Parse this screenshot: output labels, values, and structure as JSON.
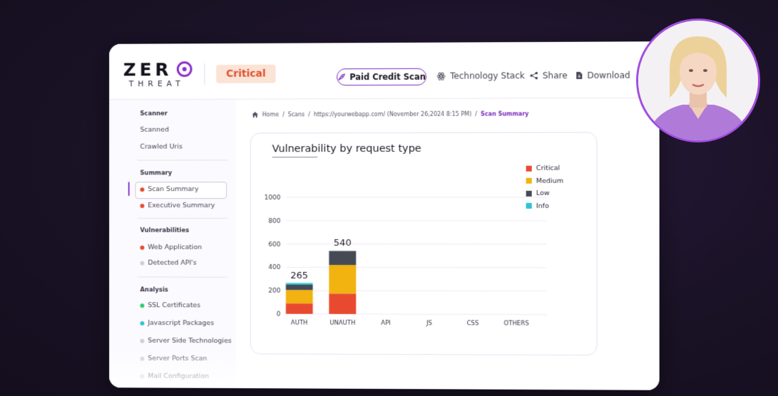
{
  "brand": {
    "logo_top": "ZER",
    "logo_bottom": "THREAT"
  },
  "header": {
    "severity": "Critical",
    "paid_scan": "Paid Credit Scan",
    "technology_stack": "Technology Stack",
    "share": "Share",
    "download": "Download"
  },
  "sidebar": {
    "scanner_heading": "Scanner",
    "scanner_items": [
      "Scanned",
      "Crawled Uris"
    ],
    "summary_heading": "Summary",
    "summary_items": [
      "Scan Summary",
      "Executive Summary"
    ],
    "vulnerabilities_heading": "Vulnerabilities",
    "vulnerabilities_items": [
      "Web Application",
      "Detected API's"
    ],
    "analysis_heading": "Analysis",
    "analysis_items": [
      "SSL Certificates",
      "Javascript Packages",
      "Server Side Technologies",
      "Server Ports Scan",
      "Mail Configuration"
    ]
  },
  "breadcrumb": {
    "home": "Home",
    "scans": "Scans",
    "target": "https://yourwebapp.com/ (November 26,2024 8:15 PM)",
    "current": "Scan Summary",
    "separator": "/"
  },
  "colors": {
    "critical": "#e84a2f",
    "medium": "#f2b20f",
    "low": "#454a55",
    "info": "#2ec4d6",
    "accent": "#7b2cbf"
  },
  "chart_data": {
    "type": "bar",
    "stacked": true,
    "title": "Vulnerability by request type",
    "categories": [
      "AUTH",
      "UNAUTH",
      "API",
      "JS",
      "CSS",
      "OTHERS"
    ],
    "series": [
      {
        "name": "Critical",
        "values": [
          90,
          175,
          0,
          0,
          0,
          0
        ]
      },
      {
        "name": "Medium",
        "values": [
          115,
          245,
          0,
          0,
          0,
          0
        ]
      },
      {
        "name": "Low",
        "values": [
          45,
          120,
          0,
          0,
          0,
          0
        ]
      },
      {
        "name": "Info",
        "values": [
          15,
          0,
          0,
          0,
          0,
          0
        ]
      }
    ],
    "totals": [
      "265",
      "540",
      "",
      "",
      "",
      ""
    ],
    "yticks": [
      0,
      200,
      400,
      600,
      800,
      1000
    ],
    "ylim": [
      0,
      1000
    ],
    "grid": true,
    "legend": "top-right"
  }
}
